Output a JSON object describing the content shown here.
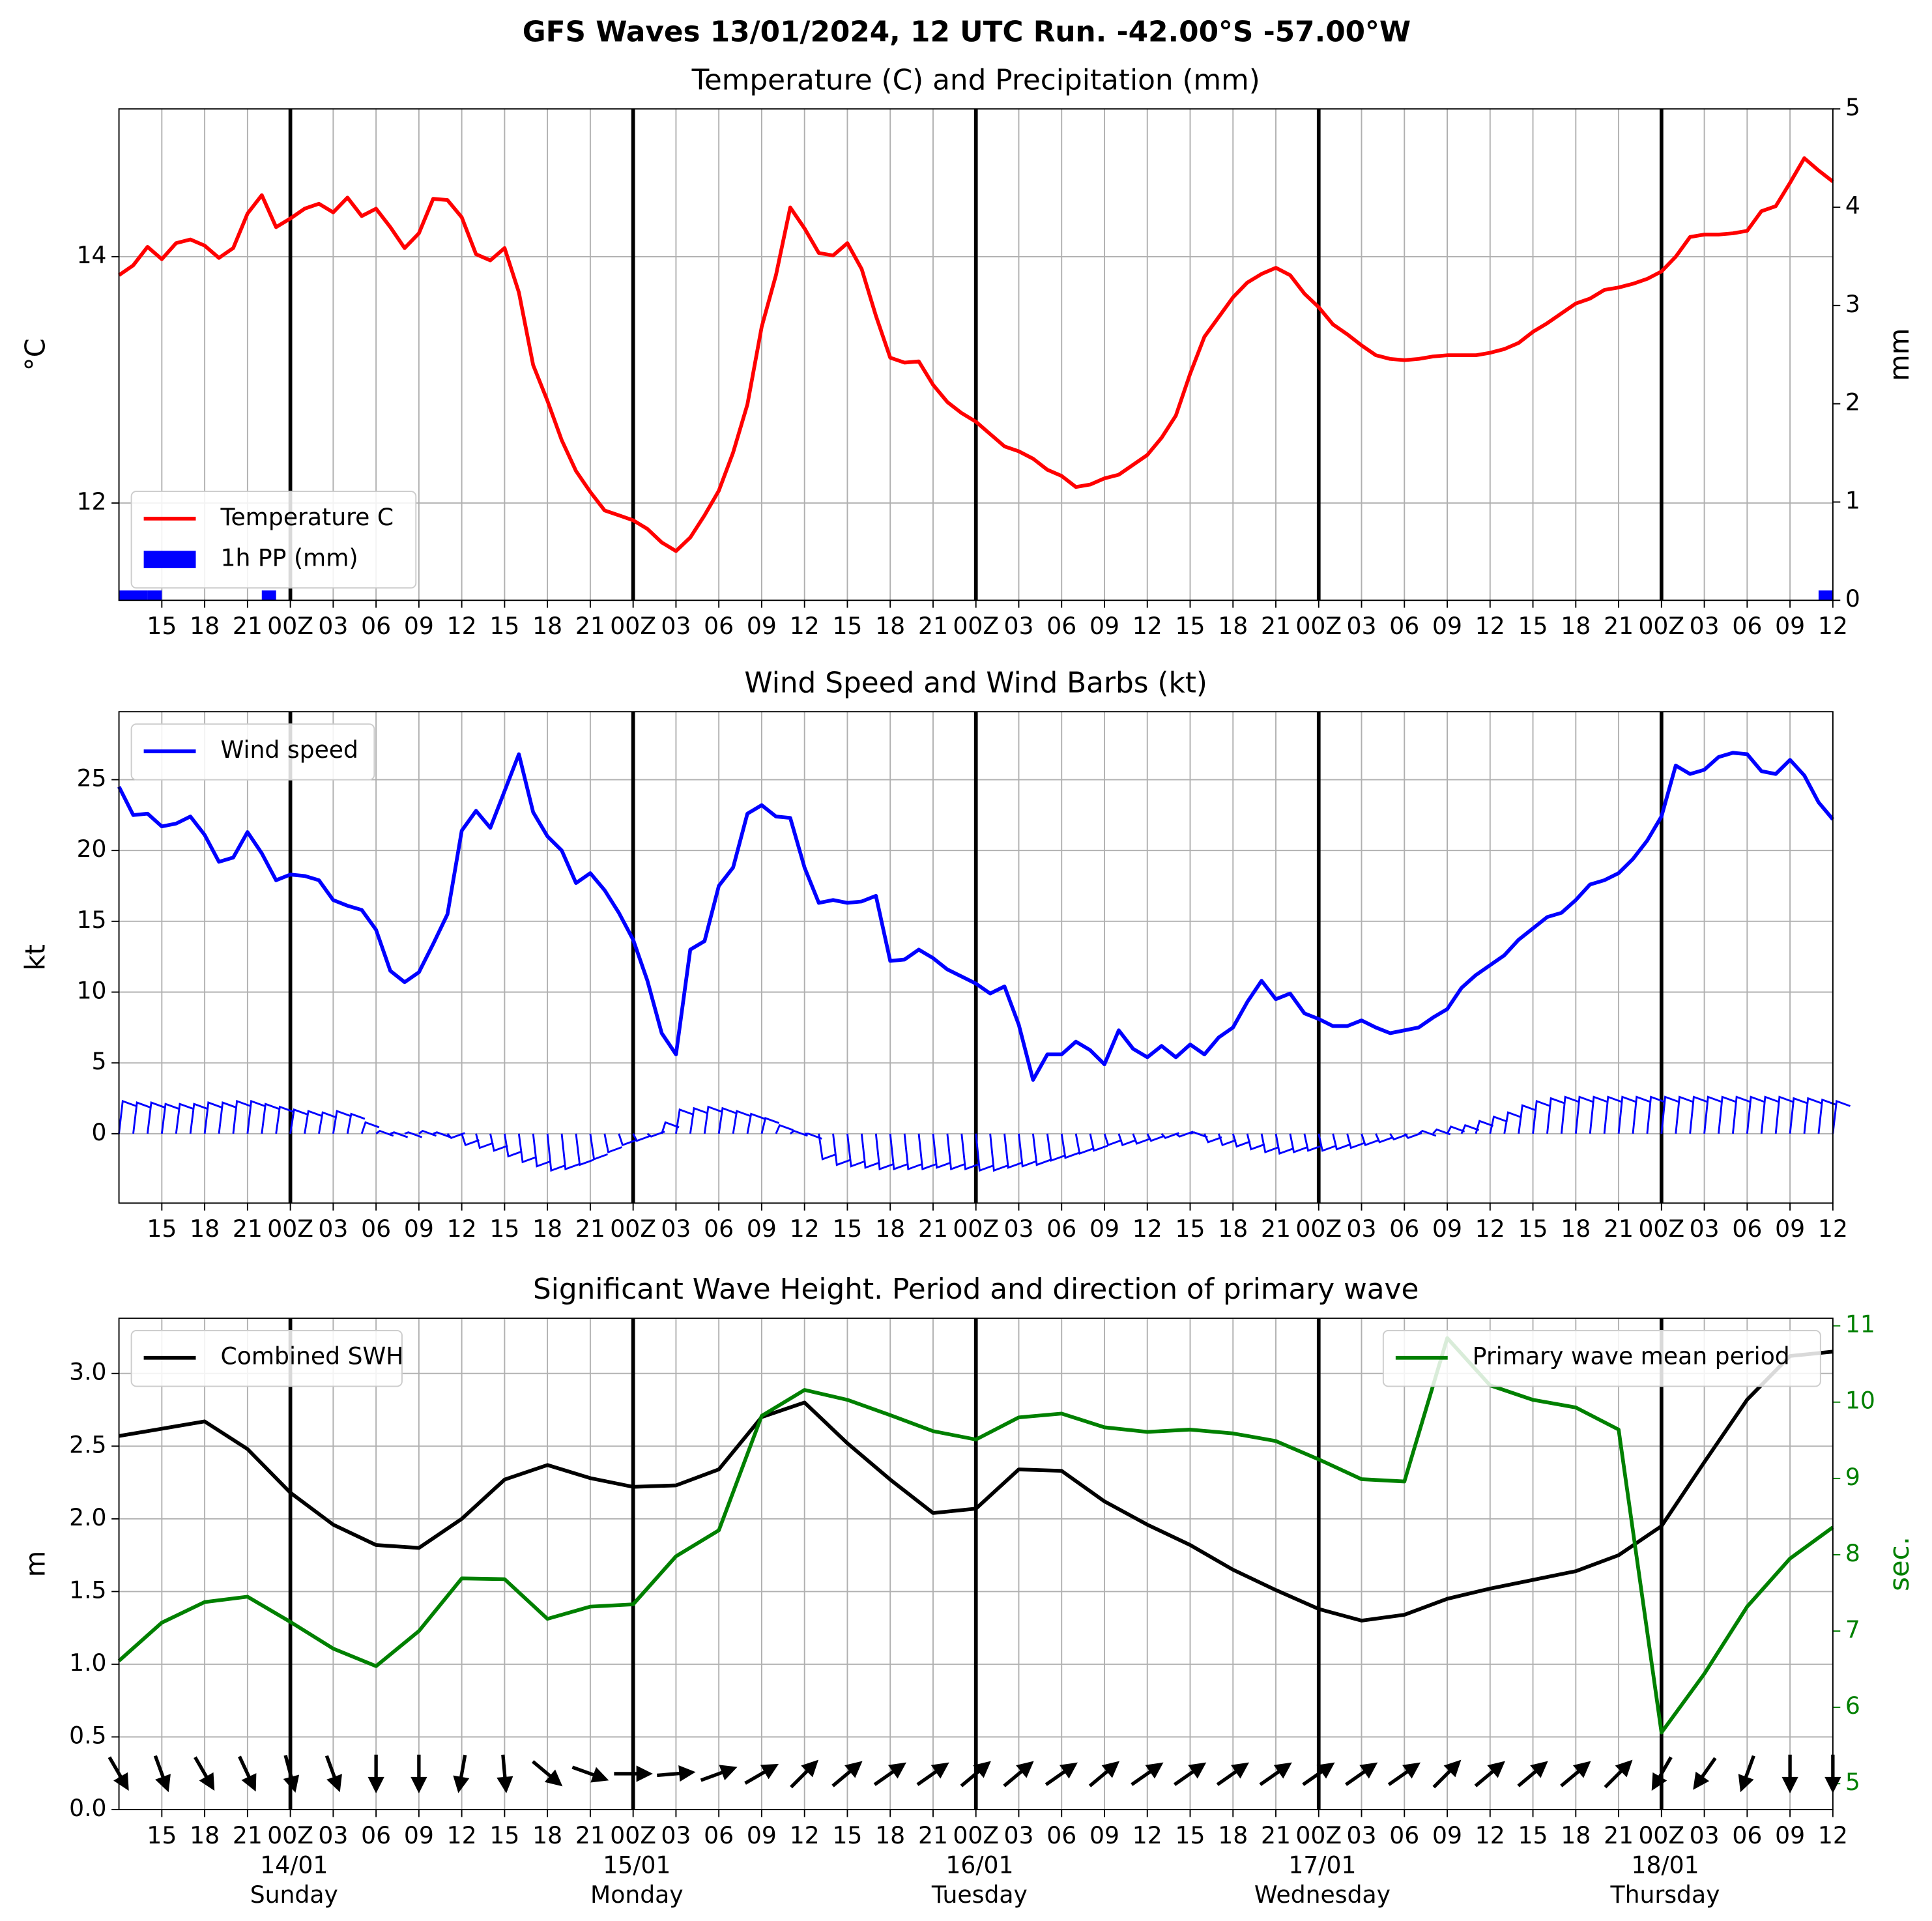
{
  "title": "GFS Waves 13/01/2024, 12 UTC Run. -42.00°S -57.00°W",
  "xlim": [
    0,
    120
  ],
  "xticks": [
    {
      "value": 3,
      "label": "15"
    },
    {
      "value": 6,
      "label": "18"
    },
    {
      "value": 9,
      "label": "21"
    },
    {
      "value": 12,
      "label": "00Z"
    },
    {
      "value": 15,
      "label": "03"
    },
    {
      "value": 18,
      "label": "06"
    },
    {
      "value": 21,
      "label": "09"
    },
    {
      "value": 24,
      "label": "12"
    },
    {
      "value": 27,
      "label": "15"
    },
    {
      "value": 30,
      "label": "18"
    },
    {
      "value": 33,
      "label": "21"
    },
    {
      "value": 36,
      "label": "00Z"
    },
    {
      "value": 39,
      "label": "03"
    },
    {
      "value": 42,
      "label": "06"
    },
    {
      "value": 45,
      "label": "09"
    },
    {
      "value": 48,
      "label": "12"
    },
    {
      "value": 51,
      "label": "15"
    },
    {
      "value": 54,
      "label": "18"
    },
    {
      "value": 57,
      "label": "21"
    },
    {
      "value": 60,
      "label": "00Z"
    },
    {
      "value": 63,
      "label": "03"
    },
    {
      "value": 66,
      "label": "06"
    },
    {
      "value": 69,
      "label": "09"
    },
    {
      "value": 72,
      "label": "12"
    },
    {
      "value": 75,
      "label": "15"
    },
    {
      "value": 78,
      "label": "18"
    },
    {
      "value": 81,
      "label": "21"
    },
    {
      "value": 84,
      "label": "00Z"
    },
    {
      "value": 87,
      "label": "03"
    },
    {
      "value": 90,
      "label": "06"
    },
    {
      "value": 93,
      "label": "09"
    },
    {
      "value": 96,
      "label": "12"
    },
    {
      "value": 99,
      "label": "15"
    },
    {
      "value": 102,
      "label": "18"
    },
    {
      "value": 105,
      "label": "21"
    },
    {
      "value": 108,
      "label": "00Z"
    },
    {
      "value": 111,
      "label": "03"
    },
    {
      "value": 114,
      "label": "06"
    },
    {
      "value": 117,
      "label": "09"
    },
    {
      "value": 120,
      "label": "12"
    }
  ],
  "day_lines": [
    12,
    36,
    60,
    84,
    108
  ],
  "chart_data": [
    {
      "type": "line",
      "title": "Temperature (C) and Precipitation (mm)",
      "ylabel": "°C",
      "y2label": "mm",
      "ylim": [
        11.21,
        15.2
      ],
      "yticks": [
        12,
        14
      ],
      "y2lim": [
        0,
        5
      ],
      "y2ticks": [
        0,
        1,
        2,
        3,
        4,
        5
      ],
      "grid": true,
      "legend": "lower left",
      "x": [
        0,
        1,
        2,
        3,
        4,
        5,
        6,
        7,
        8,
        9,
        10,
        11,
        12,
        13,
        14,
        15,
        16,
        17,
        18,
        19,
        20,
        21,
        22,
        23,
        24,
        25,
        26,
        27,
        28,
        29,
        30,
        31,
        32,
        33,
        34,
        35,
        36,
        37,
        38,
        39,
        40,
        41,
        42,
        43,
        44,
        45,
        46,
        47,
        48,
        49,
        50,
        51,
        52,
        53,
        54,
        55,
        56,
        57,
        58,
        59,
        60,
        61,
        62,
        63,
        64,
        65,
        66,
        67,
        68,
        69,
        70,
        71,
        72,
        73,
        74,
        75,
        76,
        77,
        78,
        79,
        80,
        81,
        82,
        83,
        84,
        85,
        86,
        87,
        88,
        89,
        90,
        91,
        92,
        93,
        94,
        95,
        96,
        97,
        98,
        99,
        100,
        101,
        102,
        103,
        104,
        105,
        106,
        107,
        108,
        109,
        110,
        111,
        112,
        113,
        114,
        115,
        116,
        117,
        118,
        119,
        120
      ],
      "series": [
        {
          "name": "Temperature C",
          "color": "#ff0000",
          "values": [
            13.85,
            13.93,
            14.08,
            13.98,
            14.11,
            14.14,
            14.09,
            13.99,
            14.07,
            14.35,
            14.5,
            14.24,
            14.31,
            14.39,
            14.43,
            14.36,
            14.48,
            14.33,
            14.39,
            14.24,
            14.07,
            14.19,
            14.47,
            14.46,
            14.32,
            14.02,
            13.97,
            14.07,
            13.71,
            13.12,
            12.83,
            12.51,
            12.26,
            12.09,
            11.94,
            11.9,
            11.86,
            11.79,
            11.68,
            11.61,
            11.72,
            11.9,
            12.1,
            12.41,
            12.8,
            13.43,
            13.85,
            14.4,
            14.23,
            14.03,
            14.01,
            14.11,
            13.9,
            13.52,
            13.18,
            13.14,
            13.15,
            12.96,
            12.82,
            12.73,
            12.66,
            12.56,
            12.46,
            12.42,
            12.36,
            12.27,
            12.22,
            12.13,
            12.15,
            12.2,
            12.23,
            12.31,
            12.39,
            12.53,
            12.71,
            13.05,
            13.35,
            13.51,
            13.67,
            13.79,
            13.86,
            13.91,
            13.85,
            13.7,
            13.59,
            13.45,
            13.37,
            13.28,
            13.2,
            13.17,
            13.16,
            13.17,
            13.19,
            13.2,
            13.2,
            13.2,
            13.22,
            13.25,
            13.3,
            13.39,
            13.46,
            13.54,
            13.62,
            13.66,
            13.73,
            13.75,
            13.78,
            13.82,
            13.88,
            14.0,
            14.16,
            14.18,
            14.18,
            14.19,
            14.21,
            14.37,
            14.41,
            14.6,
            14.8,
            14.7,
            14.61
          ]
        },
        {
          "name": "1h PP (mm)",
          "color": "#0000ff",
          "type": "bar",
          "axis": "y2",
          "x": [
            0,
            1,
            2,
            10,
            119
          ],
          "values": [
            0.1,
            0.1,
            0.1,
            0.1,
            0.1
          ]
        }
      ]
    },
    {
      "type": "line",
      "title": "Wind Speed and Wind Barbs (kt)",
      "ylabel": "kt",
      "ylim": [
        -4.9,
        29.8
      ],
      "yticks": [
        0,
        5,
        10,
        15,
        20,
        25
      ],
      "grid": true,
      "legend": "upper left",
      "x": [
        0,
        1,
        2,
        3,
        4,
        5,
        6,
        7,
        8,
        9,
        10,
        11,
        12,
        13,
        14,
        15,
        16,
        17,
        18,
        19,
        20,
        21,
        22,
        23,
        24,
        25,
        26,
        27,
        28,
        29,
        30,
        31,
        32,
        33,
        34,
        35,
        36,
        37,
        38,
        39,
        40,
        41,
        42,
        43,
        44,
        45,
        46,
        47,
        48,
        49,
        50,
        51,
        52,
        53,
        54,
        55,
        56,
        57,
        58,
        59,
        60,
        61,
        62,
        63,
        64,
        65,
        66,
        67,
        68,
        69,
        70,
        71,
        72,
        73,
        74,
        75,
        76,
        77,
        78,
        79,
        80,
        81,
        82,
        83,
        84,
        85,
        86,
        87,
        88,
        89,
        90,
        91,
        92,
        93,
        94,
        95,
        96,
        97,
        98,
        99,
        100,
        101,
        102,
        103,
        104,
        105,
        106,
        107,
        108,
        109,
        110,
        111,
        112,
        113,
        114,
        115,
        116,
        117,
        118,
        119,
        120
      ],
      "series": [
        {
          "name": "Wind speed",
          "color": "#0000ff",
          "values": [
            24.5,
            22.5,
            22.6,
            21.7,
            21.9,
            22.4,
            21.1,
            19.2,
            19.5,
            21.3,
            19.8,
            17.9,
            18.3,
            18.2,
            17.9,
            16.5,
            16.1,
            15.8,
            14.4,
            11.5,
            10.7,
            11.4,
            13.4,
            15.5,
            21.4,
            22.8,
            21.6,
            24.2,
            26.8,
            22.7,
            21.0,
            20.0,
            17.7,
            18.4,
            17.2,
            15.6,
            13.7,
            10.8,
            7.1,
            5.6,
            13.0,
            13.6,
            17.5,
            18.8,
            22.6,
            23.2,
            22.4,
            22.3,
            18.8,
            16.3,
            16.5,
            16.3,
            16.4,
            16.8,
            12.2,
            12.3,
            13.0,
            12.4,
            11.6,
            11.1,
            10.6,
            9.9,
            10.4,
            7.7,
            3.8,
            5.6,
            5.6,
            6.5,
            5.9,
            4.9,
            7.3,
            6.0,
            5.4,
            6.2,
            5.4,
            6.3,
            5.6,
            6.8,
            7.5,
            9.3,
            10.8,
            9.5,
            9.9,
            8.5,
            8.1,
            7.6,
            7.6,
            8.0,
            7.5,
            7.1,
            7.3,
            7.5,
            8.2,
            8.8,
            10.3,
            11.2,
            11.9,
            12.6,
            13.7,
            14.5,
            15.3,
            15.6,
            16.5,
            17.6,
            17.9,
            18.4,
            19.4,
            20.7,
            22.4,
            26.0,
            25.4,
            25.7,
            26.6,
            26.9,
            26.8,
            25.6,
            25.4,
            26.4,
            25.3,
            23.4,
            22.2
          ]
        }
      ],
      "barbs": {
        "color": "#0000ff",
        "values": [
          2.3,
          2.2,
          2.2,
          2.1,
          2.1,
          2.1,
          2.2,
          2.2,
          2.3,
          2.3,
          2.1,
          1.9,
          1.7,
          1.6,
          1.5,
          1.6,
          1.4,
          0.8,
          0.2,
          0.1,
          0.1,
          0.2,
          0.1,
          -0.3,
          -0.8,
          -1.0,
          -1.2,
          -1.6,
          -2.0,
          -2.3,
          -2.6,
          -2.5,
          -2.2,
          -1.8,
          -1.3,
          -0.8,
          -0.5,
          -0.2,
          0.8,
          1.7,
          1.8,
          1.9,
          1.8,
          1.6,
          1.4,
          1.1,
          0.6,
          0.2,
          0.0,
          -1.8,
          -2.2,
          -2.3,
          -2.4,
          -2.5,
          -2.5,
          -2.5,
          -2.5,
          -2.4,
          -2.5,
          -2.5,
          -2.6,
          -2.6,
          -2.4,
          -2.3,
          -2.2,
          -1.9,
          -1.7,
          -1.4,
          -1.2,
          -0.8,
          -0.8,
          -0.7,
          -0.5,
          -0.3,
          -0.2,
          0.1,
          -0.6,
          -0.8,
          -0.9,
          -1.1,
          -1.3,
          -1.4,
          -1.3,
          -1.2,
          -1.2,
          -1.1,
          -1.0,
          -0.8,
          -0.6,
          -0.4,
          -0.3,
          0.2,
          0.3,
          0.5,
          0.6,
          0.9,
          1.2,
          1.5,
          2.0,
          2.3,
          2.5,
          2.6,
          2.6,
          2.6,
          2.6,
          2.6,
          2.6,
          2.6,
          2.6,
          2.6,
          2.6,
          2.6,
          2.6,
          2.6,
          2.6,
          2.6,
          2.6,
          2.5,
          2.5,
          2.4,
          2.3
        ]
      }
    },
    {
      "type": "line",
      "title": "Significant Wave Height. Period and direction of primary wave",
      "ylabel": "m",
      "y2label": "sec.",
      "y2color": "#008000",
      "ylim": [
        0,
        3.38
      ],
      "yticks": [
        {
          "value": 0,
          "label": "0.0"
        },
        {
          "value": 0.5,
          "label": "0.5"
        },
        {
          "value": 1,
          "label": "1.0"
        },
        {
          "value": 1.5,
          "label": "1.5"
        },
        {
          "value": 2,
          "label": "2.0"
        },
        {
          "value": 2.5,
          "label": "2.5"
        },
        {
          "value": 3,
          "label": "3.0"
        }
      ],
      "y2lim": [
        4.66,
        11.1
      ],
      "y2ticks": [
        5,
        6,
        7,
        8,
        9,
        10,
        11
      ],
      "grid": true,
      "legend": "upper left",
      "y2legend": "upper right",
      "x": [
        0,
        3,
        6,
        9,
        12,
        15,
        18,
        21,
        24,
        27,
        30,
        33,
        36,
        39,
        42,
        45,
        48,
        51,
        54,
        57,
        60,
        63,
        66,
        69,
        72,
        75,
        78,
        81,
        84,
        87,
        90,
        93,
        96,
        99,
        102,
        105,
        108,
        111,
        114,
        117,
        120
      ],
      "series": [
        {
          "name": "Combined SWH",
          "color": "#000000",
          "values": [
            2.57,
            2.62,
            2.67,
            2.48,
            2.18,
            1.96,
            1.82,
            1.8,
            2.0,
            2.27,
            2.37,
            2.28,
            2.22,
            2.23,
            2.34,
            2.7,
            2.8,
            2.52,
            2.27,
            2.04,
            2.07,
            2.34,
            2.33,
            2.12,
            1.96,
            1.82,
            1.65,
            1.51,
            1.38,
            1.3,
            1.34,
            1.45,
            1.52,
            1.58,
            1.64,
            1.75,
            1.95,
            2.39,
            2.82,
            3.12,
            3.15
          ]
        },
        {
          "name": "Primary wave mean period",
          "color": "#008000",
          "axis": "y2",
          "values": [
            6.61,
            7.11,
            7.38,
            7.45,
            7.12,
            6.77,
            6.54,
            7.0,
            7.69,
            7.68,
            7.16,
            7.32,
            7.35,
            7.98,
            8.32,
            9.82,
            10.16,
            10.03,
            9.83,
            9.62,
            9.51,
            9.8,
            9.85,
            9.67,
            9.61,
            9.64,
            9.59,
            9.49,
            9.25,
            8.99,
            8.96,
            10.84,
            10.22,
            10.03,
            9.93,
            9.64,
            5.67,
            6.44,
            7.32,
            7.95,
            8.36
          ]
        }
      ],
      "wave_direction": {
        "color": "#000000",
        "values": [
          150,
          160,
          150,
          155,
          165,
          160,
          180,
          180,
          190,
          175,
          130,
          110,
          90,
          85,
          70,
          60,
          45,
          50,
          55,
          55,
          50,
          50,
          55,
          50,
          55,
          55,
          55,
          55,
          55,
          55,
          55,
          45,
          50,
          50,
          50,
          45,
          210,
          215,
          200,
          180,
          180
        ]
      },
      "date_labels": [
        {
          "value": 12,
          "label": "14/01",
          "day": "Sunday"
        },
        {
          "value": 36,
          "label": "15/01",
          "day": "Monday"
        },
        {
          "value": 60,
          "label": "16/01",
          "day": "Tuesday"
        },
        {
          "value": 84,
          "label": "17/01",
          "day": "Wednesday"
        },
        {
          "value": 108,
          "label": "18/01",
          "day": "Thursday"
        }
      ]
    }
  ]
}
